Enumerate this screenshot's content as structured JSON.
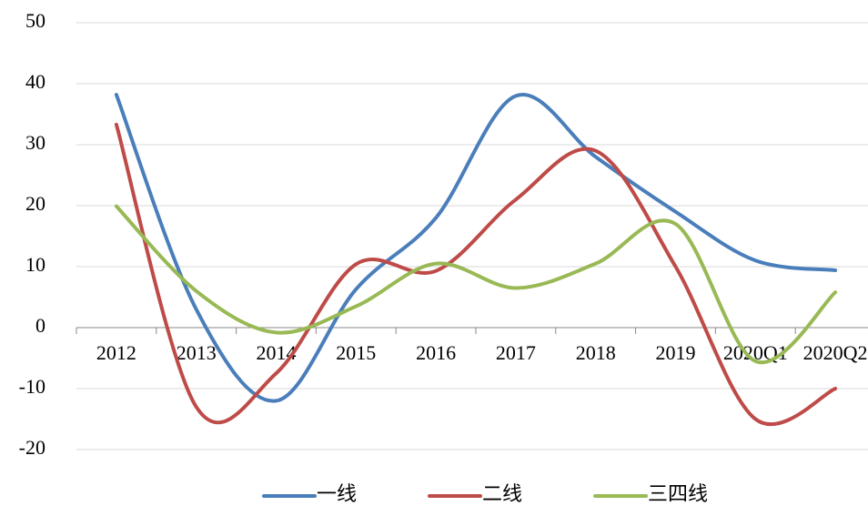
{
  "chart_data": {
    "type": "line",
    "categories": [
      "2012",
      "2013",
      "2014",
      "2015",
      "2016",
      "2017",
      "2018",
      "2019",
      "2020Q1",
      "2020Q2"
    ],
    "series": [
      {
        "name": "一线",
        "color": "#4a7ebb",
        "values": [
          38.2,
          3,
          -12,
          6.3,
          18,
          38,
          28,
          19,
          11,
          9.4
        ]
      },
      {
        "name": "二线",
        "color": "#be4b48",
        "values": [
          33.3,
          -13,
          -7.5,
          10.4,
          9.3,
          21,
          29,
          10,
          -15,
          -10
        ]
      },
      {
        "name": "三四线",
        "color": "#98b954",
        "values": [
          19.9,
          6,
          -0.8,
          3.5,
          10.5,
          6.5,
          10.5,
          17,
          -5.5,
          5.8
        ]
      }
    ],
    "ylim": [
      -20,
      50
    ],
    "yticks": [
      -20,
      -10,
      0,
      10,
      20,
      30,
      40,
      50
    ],
    "grid": true,
    "legend": "bottom"
  }
}
